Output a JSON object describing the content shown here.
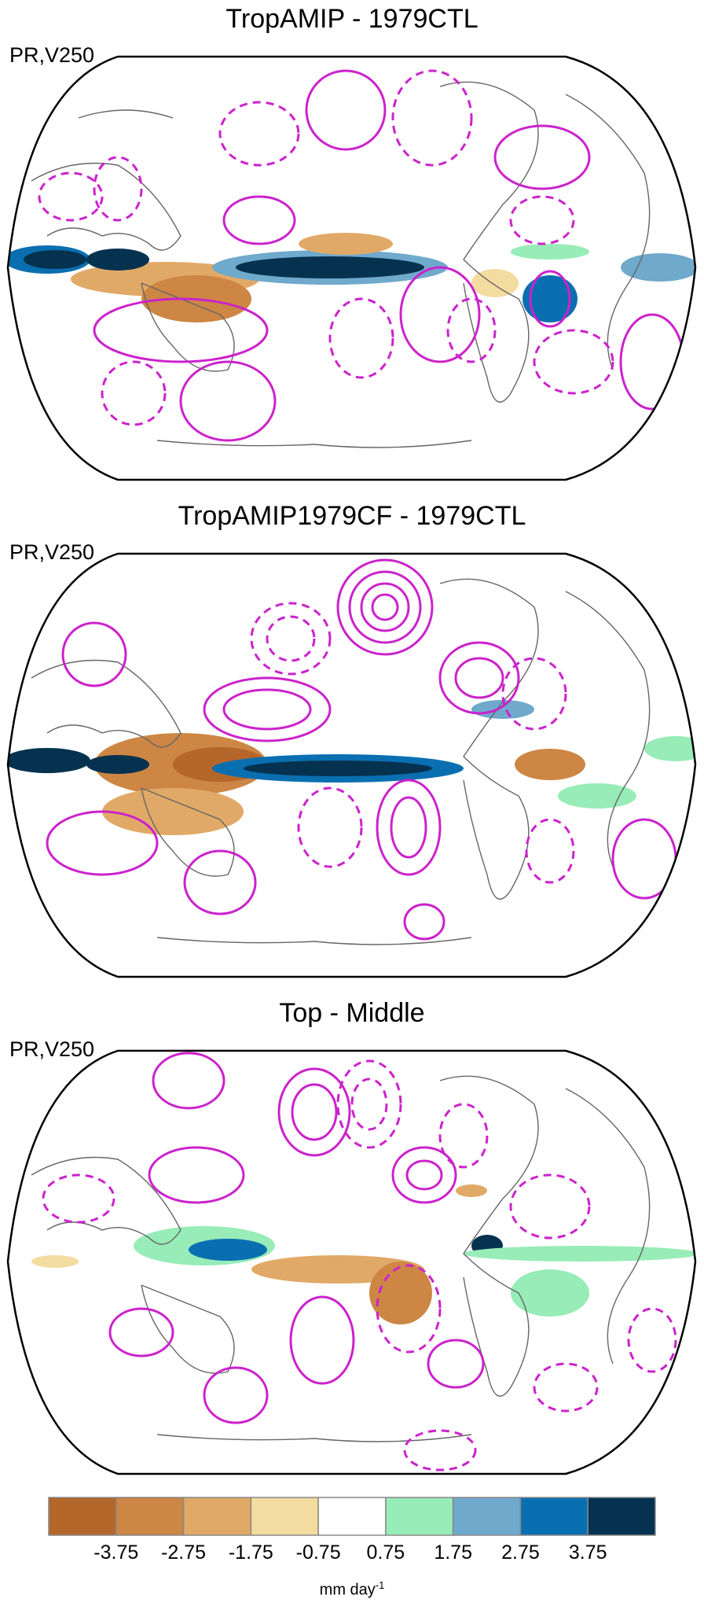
{
  "panels": [
    {
      "title": "TropAMIP - 1979CTL",
      "label": "PR,V250"
    },
    {
      "title": "TropAMIP1979CF - 1979CTL",
      "label": "PR,V250"
    },
    {
      "title": "Top - Middle",
      "label": "PR,V250"
    }
  ],
  "colorbar": {
    "ticks": [
      "-3.75",
      "-2.75",
      "-1.75",
      "-0.75",
      "0.75",
      "1.75",
      "2.75",
      "3.75"
    ],
    "colors": [
      "#b5662a",
      "#cd8644",
      "#e1a967",
      "#f3dc9f",
      "#ffffff",
      "#97ecb7",
      "#6fa9cc",
      "#0a6fb1",
      "#04324f"
    ],
    "units_base": "mm day",
    "units_exp": "-1"
  },
  "colors": {
    "contour": "#cc22cc",
    "coast": "#666666",
    "frame": "#000000"
  }
}
